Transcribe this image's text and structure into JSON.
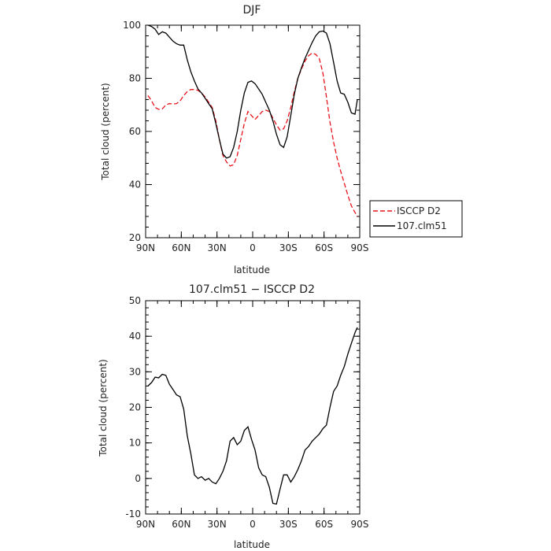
{
  "chart_data": [
    {
      "type": "line",
      "title": "DJF",
      "xlabel": "latitude",
      "ylabel": "Total cloud (percent)",
      "xlim": [
        90,
        -90
      ],
      "ylim": [
        20,
        100
      ],
      "xticks": [
        90,
        60,
        30,
        0,
        -30,
        -60,
        -90
      ],
      "xtick_labels": [
        "90N",
        "60N",
        "30N",
        "0",
        "30S",
        "60S",
        "90S"
      ],
      "yticks": [
        20,
        40,
        60,
        80,
        100
      ],
      "legend": "right, outside plot",
      "series": [
        {
          "name": "ISCCP D2",
          "color": "#e8141c",
          "dash": "dashed",
          "x": [
            88,
            85,
            82,
            79,
            76,
            73,
            70,
            67,
            64,
            61,
            58,
            55,
            52,
            49,
            46,
            43,
            40,
            37,
            34,
            31,
            28,
            25,
            22,
            19,
            16,
            13,
            10,
            7,
            4,
            1,
            -2,
            -5,
            -8,
            -11,
            -14,
            -17,
            -20,
            -23,
            -26,
            -29,
            -32,
            -35,
            -38,
            -41,
            -44,
            -47,
            -50,
            -53,
            -56,
            -59,
            -62,
            -65,
            -68,
            -71,
            -74,
            -77,
            -80,
            -83,
            -86,
            -88
          ],
          "values": [
            73.5,
            71.5,
            69,
            68.3,
            68.5,
            70,
            70.5,
            70.3,
            70.5,
            71.5,
            73.5,
            75,
            75.8,
            75.8,
            75.5,
            74.5,
            73,
            71,
            69,
            64,
            57,
            51,
            48.5,
            47,
            47.5,
            51,
            57,
            63,
            67.5,
            66,
            64.5,
            66,
            67.5,
            68,
            67.5,
            65,
            62.5,
            60.5,
            61,
            64,
            69,
            75,
            80,
            83.5,
            86.5,
            88.5,
            89.5,
            89,
            87.5,
            82,
            73,
            63.5,
            56,
            50,
            45,
            40.5,
            36,
            32,
            29.5,
            28
          ]
        },
        {
          "name": "107.clm51",
          "color": "#000000",
          "dash": "solid",
          "x": [
            88,
            85,
            82,
            79,
            76,
            73,
            70,
            67,
            64,
            61,
            58,
            55,
            52,
            49,
            46,
            43,
            40,
            37,
            34,
            31,
            28,
            25,
            22,
            19,
            16,
            13,
            10,
            7,
            4,
            1,
            -2,
            -5,
            -8,
            -11,
            -14,
            -17,
            -20,
            -23,
            -26,
            -29,
            -32,
            -35,
            -38,
            -41,
            -44,
            -47,
            -50,
            -53,
            -56,
            -59,
            -62,
            -65,
            -68,
            -71,
            -74,
            -77,
            -80,
            -83,
            -86,
            -88
          ],
          "values": [
            100,
            99.5,
            98.5,
            96.5,
            97.5,
            97,
            95.5,
            94,
            93,
            92.5,
            92.5,
            87,
            82.5,
            79,
            76,
            74.5,
            72.5,
            70.5,
            68.5,
            63,
            57,
            51.5,
            50,
            50.5,
            54,
            60,
            68,
            74.5,
            78.5,
            79,
            78,
            76,
            74,
            71,
            68,
            64,
            59,
            55,
            54,
            58,
            66,
            74,
            80,
            84,
            87.5,
            90.5,
            93.5,
            96,
            97.5,
            97.8,
            97,
            93,
            86,
            79,
            74.5,
            74,
            71,
            67,
            66.5,
            72
          ]
        }
      ]
    },
    {
      "type": "line",
      "title": "107.clm51 − ISCCP D2",
      "xlabel": "latitude",
      "ylabel": "Total cloud (percent)",
      "xlim": [
        90,
        -90
      ],
      "ylim": [
        -10,
        50
      ],
      "xticks": [
        90,
        60,
        30,
        0,
        -30,
        -60,
        -90
      ],
      "xtick_labels": [
        "90N",
        "60N",
        "30N",
        "0",
        "30S",
        "60S",
        "90S"
      ],
      "yticks": [
        -10,
        0,
        10,
        20,
        30,
        40,
        50
      ],
      "series": [
        {
          "color": "#000000",
          "dash": "solid",
          "x": [
            88,
            85,
            82,
            79,
            76,
            73,
            70,
            67,
            64,
            61,
            58,
            55,
            52,
            49,
            46,
            43,
            40,
            37,
            34,
            31,
            28,
            25,
            22,
            19,
            16,
            13,
            10,
            7,
            4,
            1,
            -2,
            -5,
            -8,
            -11,
            -14,
            -17,
            -20,
            -23,
            -26,
            -29,
            -32,
            -35,
            -38,
            -41,
            -44,
            -47,
            -50,
            -53,
            -56,
            -59,
            -62,
            -65,
            -68,
            -71,
            -74,
            -77,
            -80,
            -83,
            -86,
            -88
          ],
          "values": [
            26,
            27,
            28.5,
            28.3,
            29.3,
            29,
            26.5,
            25,
            23.5,
            23,
            19.5,
            12,
            7,
            1,
            0,
            0.5,
            -0.5,
            0,
            -1,
            -1.5,
            0,
            2,
            5,
            10.5,
            11.5,
            9.5,
            10.5,
            13.5,
            14.5,
            11,
            8,
            3,
            1,
            0.5,
            -2.5,
            -7,
            -7.2,
            -3,
            1,
            1,
            -1,
            0.5,
            2.5,
            5,
            8,
            9,
            10.5,
            11.5,
            12.5,
            14,
            15,
            20,
            24.5,
            26,
            29,
            31.5,
            35,
            38,
            41,
            42.5
          ]
        }
      ]
    }
  ]
}
